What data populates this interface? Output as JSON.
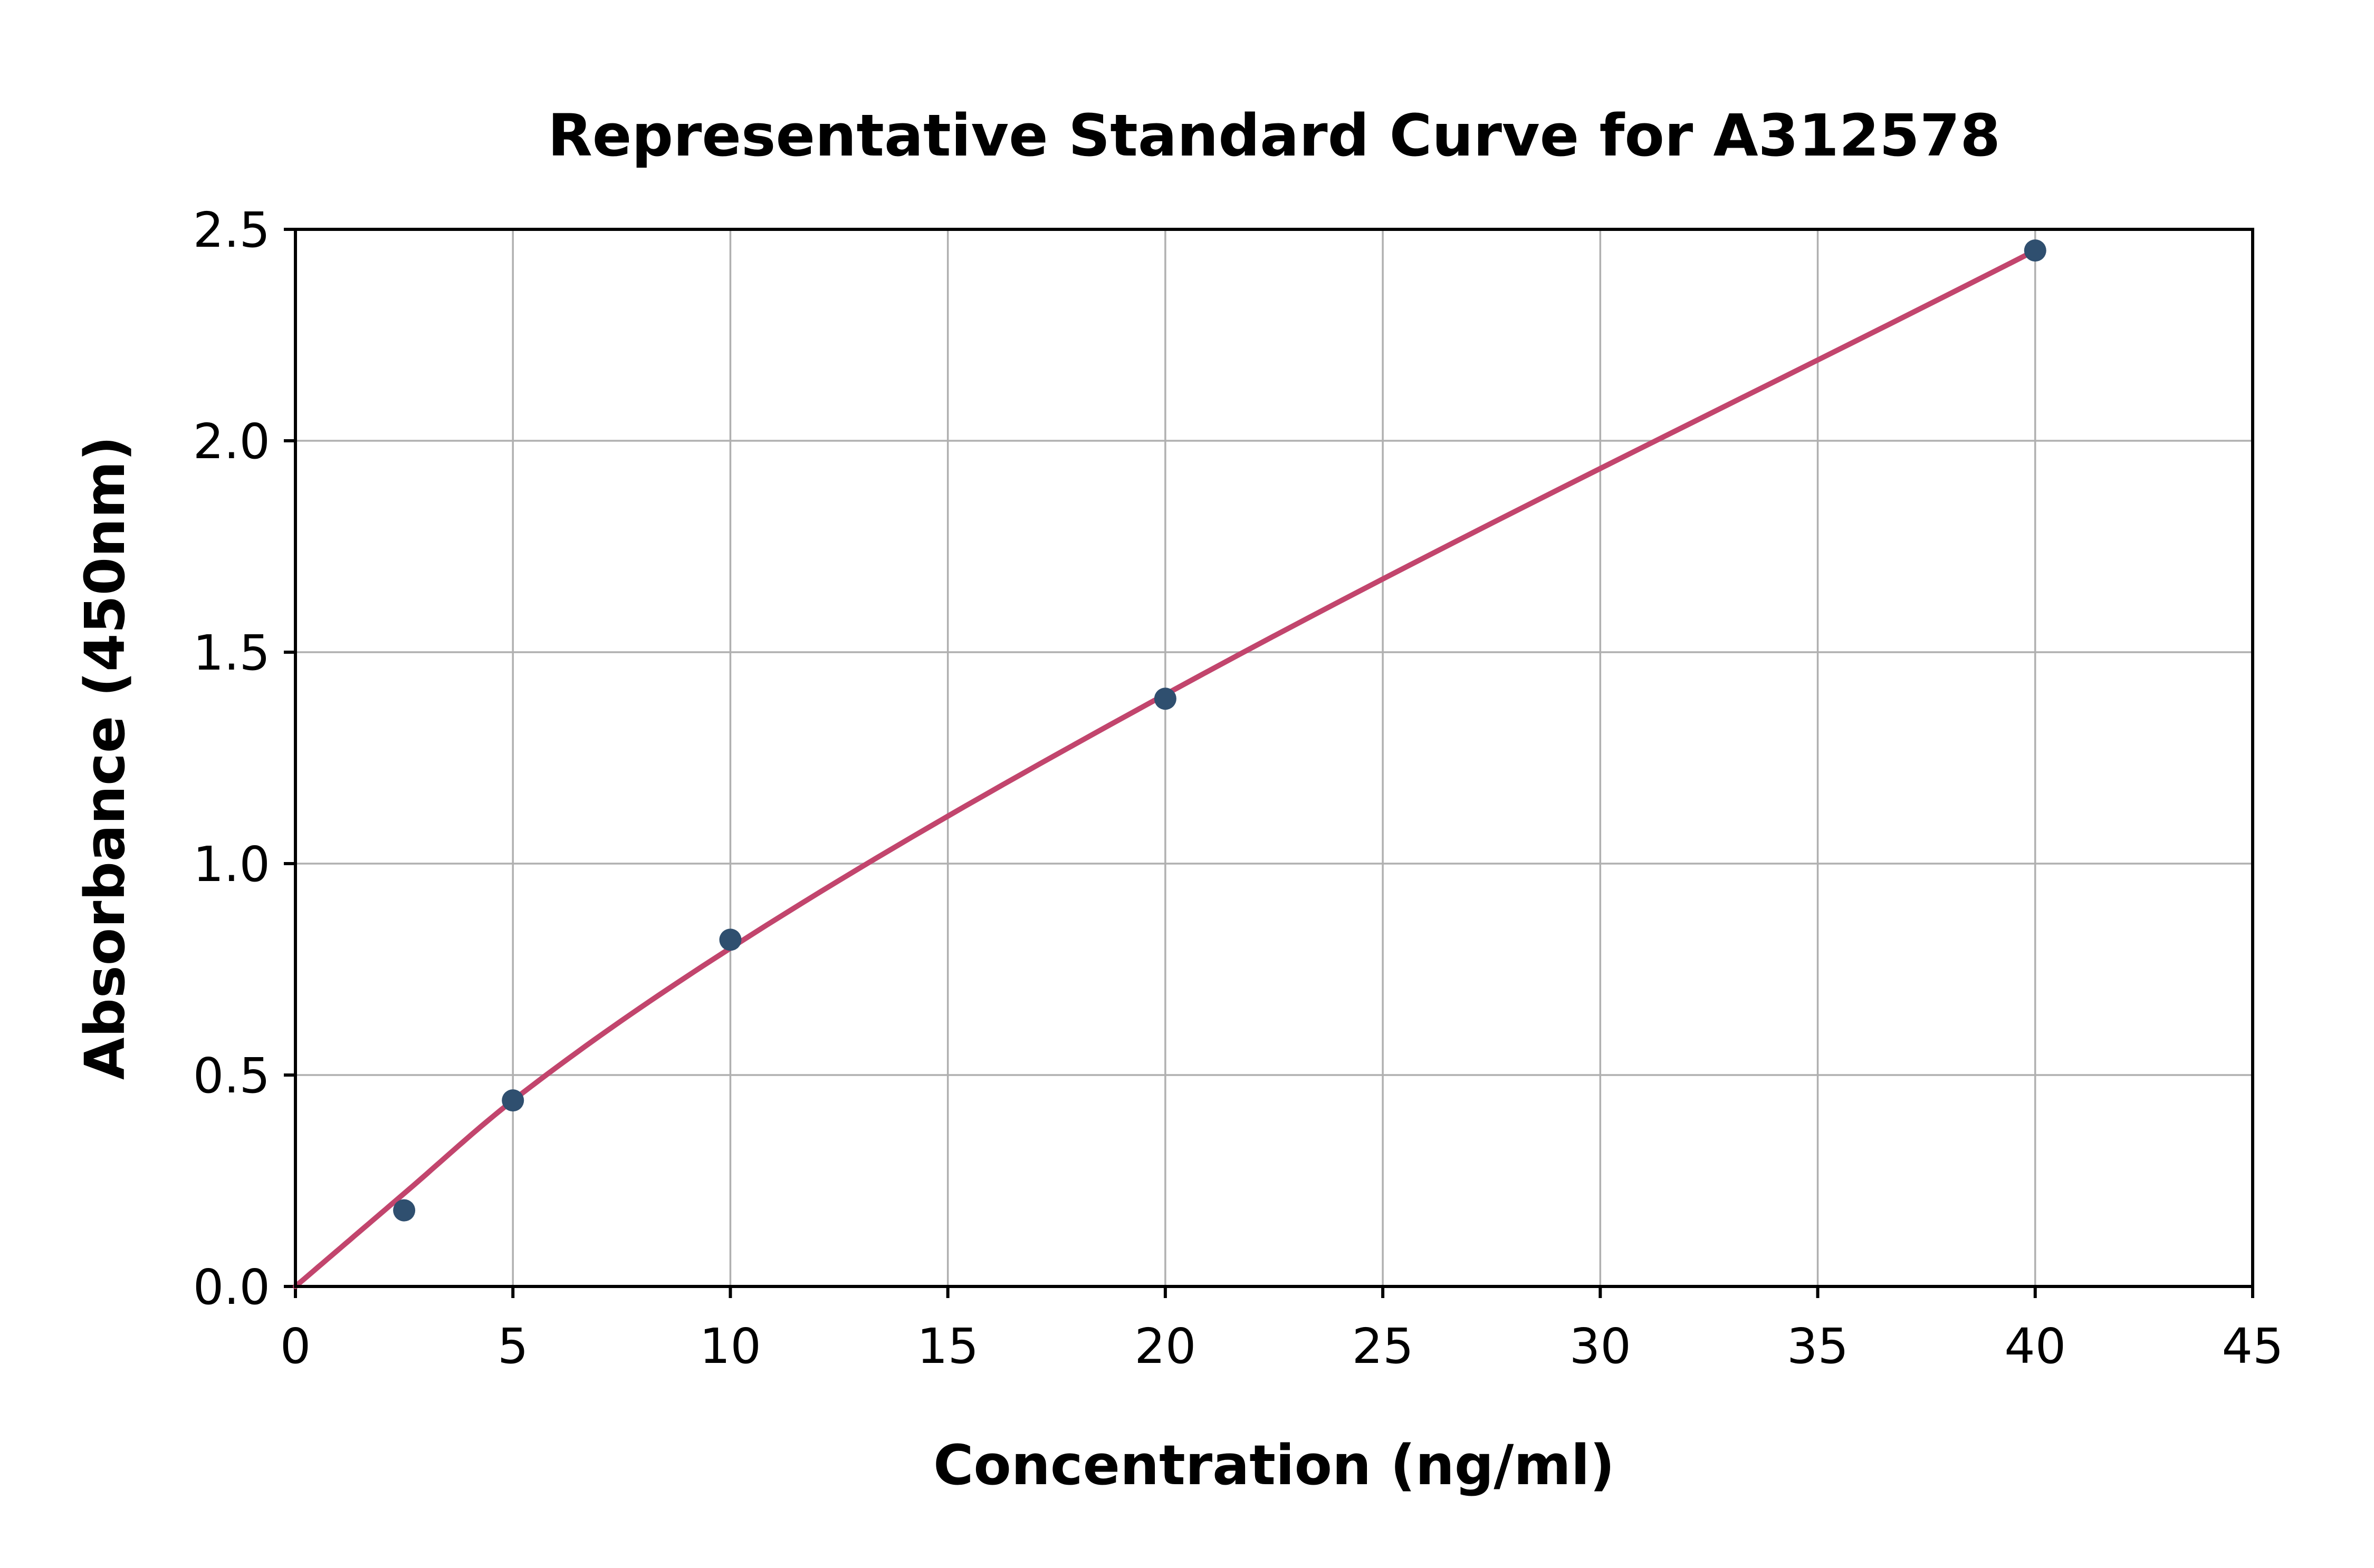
{
  "chart_data": {
    "type": "scatter",
    "title": "Representative Standard Curve for A312578",
    "xlabel": "Concentration (ng/ml)",
    "ylabel": "Absorbance (450nm)",
    "xlim": [
      0,
      45
    ],
    "ylim": [
      0,
      2.5
    ],
    "xticks": [
      "0",
      "5",
      "10",
      "15",
      "20",
      "25",
      "30",
      "35",
      "40",
      "45"
    ],
    "yticks": [
      "0.0",
      "0.5",
      "1.0",
      "1.5",
      "2.0",
      "2.5"
    ],
    "grid": true,
    "legend_position": "none",
    "series": [
      {
        "name": "fitted-curve",
        "type": "line",
        "smooth": true,
        "x": [
          0,
          2.5,
          5,
          10,
          20,
          40
        ],
        "y": [
          0.0,
          0.22,
          0.44,
          0.8,
          1.4,
          2.45
        ],
        "color": "#c2456d",
        "line_width": 10
      },
      {
        "name": "standard-points",
        "type": "scatter",
        "x": [
          2.5,
          5,
          10,
          20,
          40
        ],
        "y": [
          0.18,
          0.44,
          0.82,
          1.39,
          2.45
        ],
        "color": "#2f4f6f",
        "marker_radius": 21
      }
    ]
  },
  "colors": {
    "background": "#ffffff",
    "grid": "#b0b0b0",
    "axis": "#000000",
    "text": "#000000"
  }
}
